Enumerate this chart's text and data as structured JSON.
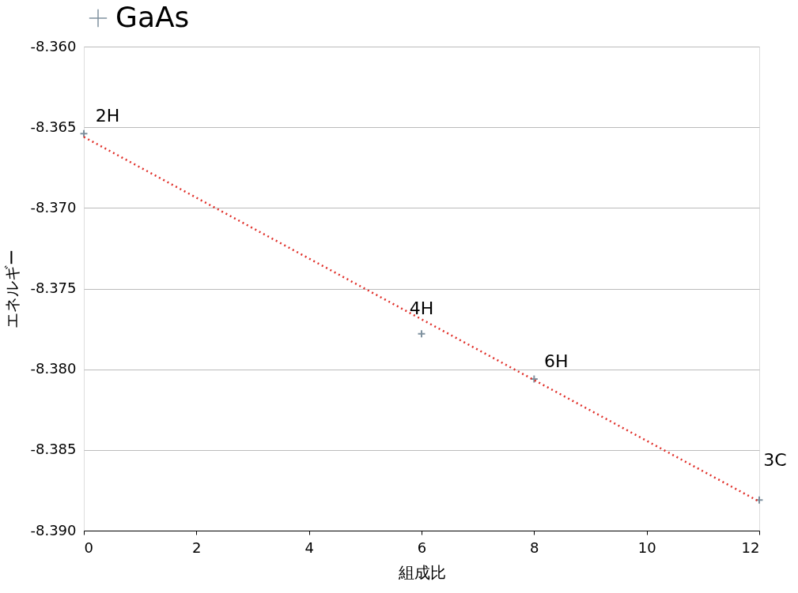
{
  "chart_data": {
    "type": "scatter",
    "xlabel": "組成比",
    "ylabel": "エネルギー",
    "xlim": [
      0,
      12
    ],
    "xticks": [
      0,
      2,
      4,
      6,
      8,
      10,
      12
    ],
    "ylim": [
      -8.39,
      -8.36
    ],
    "yticks": [
      {
        "value": -8.39,
        "label": "-8.390"
      },
      {
        "value": -8.385,
        "label": "-8.385"
      },
      {
        "value": -8.38,
        "label": "-8.380"
      },
      {
        "value": -8.375,
        "label": "-8.375"
      },
      {
        "value": -8.37,
        "label": "-8.370"
      },
      {
        "value": -8.365,
        "label": "-8.365"
      },
      {
        "value": -8.36,
        "label": "-8.360"
      }
    ],
    "grid": "y",
    "legend": "top",
    "marker": "cross",
    "series": [
      {
        "name": "GaAs",
        "color": "#4a6478",
        "x": [
          0,
          6,
          8,
          12
        ],
        "values": [
          -8.3654,
          -8.3778,
          -8.3806,
          -8.3881
        ]
      },
      {
        "type": "line",
        "color": "#e0302a",
        "line_style": "dotted",
        "marker": "none",
        "x": [
          0,
          12
        ],
        "values": [
          -8.3656,
          -8.3882
        ]
      }
    ],
    "annotations": [
      {
        "text": "2H",
        "x": 0,
        "y": -8.3654
      },
      {
        "text": "4H",
        "x": 6,
        "y": -8.3778
      },
      {
        "text": "6H",
        "x": 8,
        "y": -8.3806
      },
      {
        "text": "3C",
        "x": 12,
        "y": -8.3881
      }
    ]
  }
}
